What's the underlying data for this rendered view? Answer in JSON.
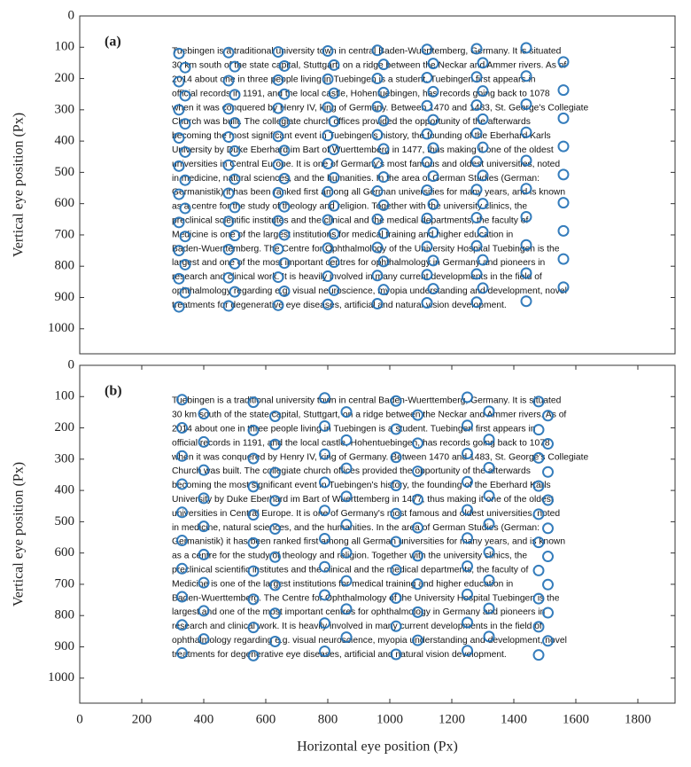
{
  "chart_data": [
    {
      "type": "scatter",
      "title": "(a)",
      "ylabel": "Vertical eye position (Px)",
      "color": "#1f6fb5",
      "xlim": [
        0,
        1920
      ],
      "ylim": [
        0,
        1080
      ],
      "y_inverted": true,
      "yticks": [
        0,
        100,
        200,
        300,
        400,
        500,
        600,
        700,
        800,
        900,
        1000
      ],
      "text_lines": [
        "Tuebingen is a traditional university town in central Baden-Wuerttemberg, Germany. It is situated",
        "30 km south of the state capital, Stuttgart, on a ridge between the Neckar and Ammer rivers. As of",
        "2014 about one in three people living in Tuebingen is a student. Tuebingen first appears in",
        "official records in 1191, and the local castle, Hohentuebingen, has records going back to 1078",
        "when it was conquered by Henry IV, king of Germany. Between 1470 and 1483, St. George's Collegiate",
        "Church was built. The collegiate church offices provided the opportunity of the afterwards",
        "becoming the most significant event in Tuebingen's history, the founding of the Eberhard Karls",
        "University by Duke Eberhard im Bart of Wuerttemberg in 1477, thus making it one of the oldest",
        "universities in Central Europe. It is one of Germany's most famous and oldest universities, noted",
        "in medicine, natural sciences, and the humanities. In the area of German Studies (German:",
        "Germanistik) it has been ranked first among all German universities for many years, and is known",
        "as a centre for the study of theology and religion. Together with the university clinics, the",
        "preclinical scientific institutes and the clinical and the medical departments, the faculty of",
        "Medicine is one of the largest institutions for medical training and higher education in",
        "Baden-Wuerttemberg. The Centre for Ophthalmology of the University Hospital Tuebingen is the",
        "largest and one of the most important centres for ophthalmology in Germany and pioneers in",
        "research and clinical work. It is heavily involved in many current developments in the field of",
        "ophthalmology regarding e.g. visual neuroscience, myopia understanding and development, novel",
        "treatments for degenerative eye diseases, artificial and natural vision development."
      ],
      "x": [
        320,
        480,
        640,
        800,
        960,
        1120,
        1280,
        1440,
        340,
        500,
        660,
        820,
        980,
        1140,
        1300,
        1560,
        320,
        480,
        640,
        800,
        960,
        1120,
        1280,
        1440,
        340,
        500,
        660,
        820,
        980,
        1140,
        1300,
        1560,
        320,
        480,
        640,
        800,
        960,
        1120,
        1280,
        1440,
        340,
        500,
        660,
        820,
        980,
        1140,
        1300,
        1560,
        320,
        480,
        640,
        800,
        960,
        1120,
        1280,
        1440,
        340,
        500,
        660,
        820,
        980,
        1140,
        1300,
        1560,
        320,
        480,
        640,
        800,
        960,
        1120,
        1280,
        1440,
        340,
        500,
        660,
        820,
        980,
        1140,
        1300,
        1560,
        320,
        480,
        640,
        800,
        960,
        1120,
        1280,
        1440,
        340,
        500,
        660,
        820,
        980,
        1140,
        1300,
        1560,
        320,
        480,
        640,
        800,
        960,
        1120,
        1280,
        1440,
        340,
        500,
        660,
        820,
        980,
        1140,
        1300,
        1560,
        320,
        480,
        640,
        800,
        960,
        1120,
        1280,
        1440,
        340,
        500,
        660,
        820,
        980,
        1140,
        1300,
        1560,
        320,
        480,
        640,
        800,
        960,
        1120,
        1280,
        1440,
        340,
        500,
        660,
        820,
        980,
        1140,
        1300,
        1560,
        320,
        480,
        640,
        800,
        960,
        1120,
        1280,
        1440
      ],
      "y": [
        120,
        117,
        115,
        112,
        110,
        107,
        105,
        102,
        165,
        162,
        160,
        157,
        155,
        152,
        150,
        147,
        210,
        207,
        205,
        202,
        200,
        197,
        195,
        192,
        255,
        252,
        250,
        247,
        245,
        242,
        240,
        237,
        300,
        297,
        295,
        292,
        290,
        287,
        285,
        282,
        345,
        342,
        340,
        337,
        335,
        332,
        330,
        327,
        390,
        387,
        385,
        382,
        380,
        377,
        375,
        372,
        435,
        432,
        430,
        427,
        425,
        422,
        420,
        417,
        480,
        477,
        475,
        472,
        470,
        467,
        465,
        462,
        525,
        522,
        520,
        517,
        515,
        512,
        510,
        507,
        570,
        567,
        565,
        562,
        560,
        557,
        555,
        552,
        615,
        612,
        610,
        607,
        605,
        602,
        600,
        597,
        660,
        657,
        655,
        652,
        650,
        647,
        645,
        642,
        705,
        702,
        700,
        697,
        695,
        692,
        690,
        687,
        750,
        747,
        745,
        742,
        740,
        737,
        735,
        732,
        795,
        792,
        790,
        787,
        785,
        782,
        780,
        777,
        840,
        837,
        835,
        832,
        830,
        827,
        825,
        822,
        885,
        882,
        880,
        877,
        875,
        872,
        870,
        867,
        930,
        927,
        925,
        922,
        920,
        917,
        915,
        912
      ]
    },
    {
      "type": "scatter",
      "title": "(b)",
      "xlabel": "Horizontal eye position (Px)",
      "ylabel": "Vertical eye position (Px)",
      "color": "#1f6fb5",
      "xlim": [
        0,
        1920
      ],
      "ylim": [
        0,
        1080
      ],
      "y_inverted": true,
      "xticks": [
        0,
        200,
        400,
        600,
        800,
        1000,
        1200,
        1400,
        1600,
        1800
      ],
      "yticks": [
        0,
        100,
        200,
        300,
        400,
        500,
        600,
        700,
        800,
        900,
        1000
      ],
      "text_lines": [
        "Tuebingen is a traditional university town in central Baden-Wuerttemberg, Germany. It is situated",
        "30 km south of the state capital, Stuttgart, on a ridge between the Neckar and Ammer rivers. As of",
        "2014 about one in three people living in Tuebingen is a student. Tuebingen first appears in",
        "official records in 1191, and the local castle, Hohentuebingen, has records going back to 1078",
        "when it was conquered by Henry IV, king of Germany. Between 1470 and 1483, St. George's Collegiate",
        "Church was built. The collegiate church offices provided the opportunity of the afterwards",
        "becoming the most significant event in Tuebingen's history, the founding of the Eberhard Karls",
        "University by Duke Eberhard im Bart of Wuerttemberg in 1477, thus making it one of the oldest",
        "universities in Central Europe. It is one of Germany's most famous and oldest universities, noted",
        "in medicine, natural sciences, and the humanities. In the area of German Studies (German:",
        "Germanistik) it has been ranked first among all German universities for many years, and is known",
        "as a centre for the study of theology and religion. Together with the university clinics, the",
        "preclinical scientific institutes and the clinical and the medical departments, the faculty of",
        "Medicine is one of the largest institutions for medical training and higher education in",
        "Baden-Wuerttemberg. The Centre for Ophthalmology of the University Hospital Tuebingen is the",
        "largest and one of the most important centres for ophthalmology in Germany and pioneers in",
        "research and clinical work. It is heavily involved in many current developments in the field of",
        "ophthalmology regarding e.g. visual neuroscience, myopia understanding and development, novel",
        "treatments for degenerative eye diseases, artificial and natural vision development."
      ],
      "x": [
        330,
        560,
        790,
        1020,
        1250,
        1480,
        400,
        630,
        860,
        1090,
        1320,
        1510,
        330,
        560,
        790,
        1020,
        1250,
        1480,
        400,
        630,
        860,
        1090,
        1320,
        1510,
        330,
        560,
        790,
        1020,
        1250,
        1480,
        400,
        630,
        860,
        1090,
        1320,
        1510,
        330,
        560,
        790,
        1020,
        1250,
        1480,
        400,
        630,
        860,
        1090,
        1320,
        1510,
        330,
        560,
        790,
        1020,
        1250,
        1480,
        400,
        630,
        860,
        1090,
        1320,
        1510,
        330,
        560,
        790,
        1020,
        1250,
        1480,
        400,
        630,
        860,
        1090,
        1320,
        1510,
        330,
        560,
        790,
        1020,
        1250,
        1480,
        400,
        630,
        860,
        1090,
        1320,
        1510,
        330,
        560,
        790,
        1020,
        1250,
        1480,
        400,
        630,
        860,
        1090,
        1320,
        1510,
        330,
        560,
        790,
        1020,
        1250,
        1480,
        400,
        630,
        860,
        1090,
        1320,
        1510,
        330,
        560,
        790,
        1020,
        1250,
        1480
      ],
      "y": [
        110,
        118,
        104,
        114,
        102,
        116,
        155,
        163,
        149,
        159,
        147,
        161,
        200,
        208,
        194,
        204,
        192,
        206,
        245,
        253,
        239,
        249,
        237,
        251,
        290,
        298,
        284,
        294,
        282,
        296,
        335,
        343,
        329,
        339,
        327,
        341,
        380,
        388,
        374,
        384,
        372,
        386,
        425,
        433,
        419,
        429,
        417,
        431,
        470,
        478,
        464,
        474,
        462,
        476,
        515,
        523,
        509,
        519,
        507,
        521,
        560,
        568,
        554,
        564,
        552,
        566,
        605,
        613,
        599,
        609,
        597,
        611,
        650,
        658,
        644,
        654,
        642,
        656,
        695,
        703,
        689,
        699,
        687,
        701,
        740,
        748,
        734,
        744,
        732,
        746,
        785,
        793,
        779,
        789,
        777,
        791,
        830,
        838,
        824,
        834,
        822,
        836,
        875,
        883,
        869,
        879,
        867,
        881,
        920,
        928,
        914,
        924,
        912,
        926
      ]
    }
  ]
}
